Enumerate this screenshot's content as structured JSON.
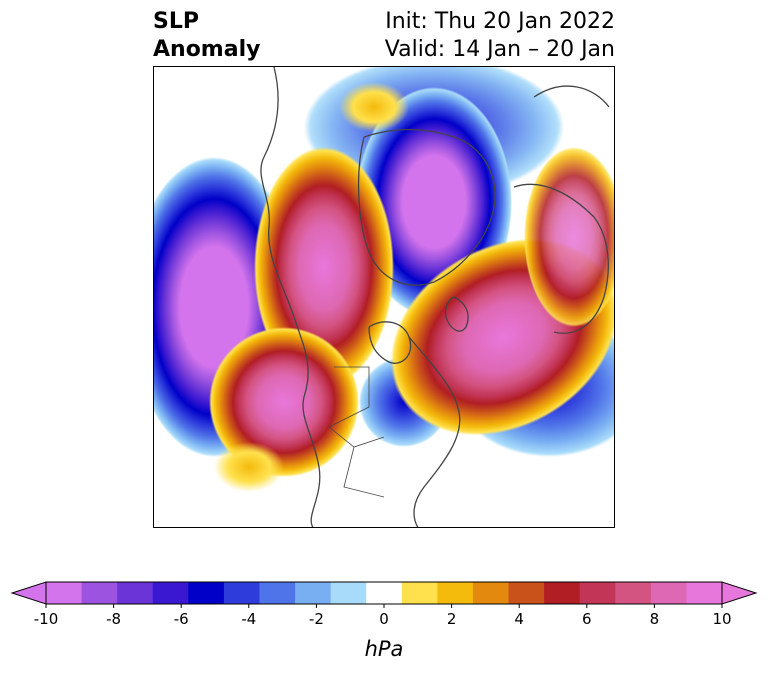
{
  "header": {
    "title_line1": "SLP",
    "title_line2": "Anomaly",
    "init_text": "Init: Thu 20 Jan 2022",
    "valid_text": "Valid: 14 Jan – 20 Jan"
  },
  "map": {
    "projection": "north polar stereographic",
    "features": [
      "North Pole low (negative anomaly)",
      "North Pacific low",
      "western North America high",
      "North Atlantic / Europe high",
      "central Atlantic low",
      "Hudson Bay low",
      "northeast Pacific high"
    ]
  },
  "colorbar": {
    "unit": "hPa",
    "extend": "both",
    "ticks": [
      "-10",
      "-8",
      "-6",
      "-4",
      "-2",
      "0",
      "2",
      "4",
      "6",
      "8",
      "10"
    ],
    "levels": [
      -10,
      -9,
      -8,
      -7,
      -6,
      -5,
      -4,
      -3,
      -2,
      -1,
      1,
      2,
      3,
      4,
      5,
      6,
      7,
      8,
      9,
      10
    ],
    "colors": [
      "#d474ec",
      "#9c53e0",
      "#6a34d7",
      "#3a18d1",
      "#0000c8",
      "#2e3cdc",
      "#4f73e8",
      "#78aef2",
      "#a8dbfa",
      "#ffffff",
      "#ffe14d",
      "#f4ba0c",
      "#e38a0e",
      "#c9521a",
      "#b11e24",
      "#c23556",
      "#d35381",
      "#de68b3",
      "#e877db"
    ]
  }
}
